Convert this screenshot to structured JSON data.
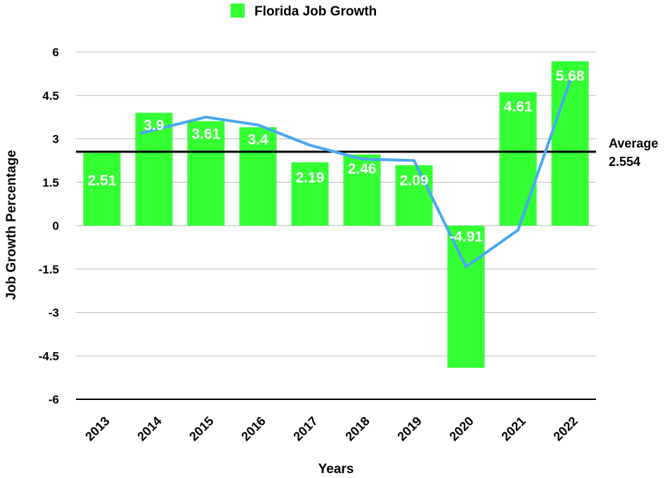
{
  "chart_data": {
    "type": "bar",
    "legend": [
      {
        "label": "Florida Job Growth",
        "color": "#33ff33"
      }
    ],
    "legend_placement": "top-center",
    "categories": [
      "2013",
      "2014",
      "2015",
      "2016",
      "2017",
      "2018",
      "2019",
      "2020",
      "2021",
      "2022"
    ],
    "series": [
      {
        "name": "Florida Job Growth",
        "values": [
          2.51,
          3.9,
          3.61,
          3.4,
          2.19,
          2.46,
          2.09,
          -4.91,
          4.61,
          5.68
        ],
        "color": "#33ff33"
      }
    ],
    "data_labels": [
      "2.51",
      "3.9",
      "3.61",
      "3.4",
      "2.19",
      "2.46",
      "2.09",
      "-4.91",
      "4.61",
      "5.68"
    ],
    "trend_line": {
      "color": "#4aa8f0",
      "values": [
        null,
        3.2,
        3.75,
        3.48,
        2.78,
        2.3,
        2.25,
        -1.42,
        -0.15,
        5.0
      ]
    },
    "average_line": {
      "value": 2.554,
      "label_line1": "Average",
      "label_line2": "2.554",
      "color": "#000000"
    },
    "xlabel": "Years",
    "ylabel": "Job Growth Percentage",
    "ylim": [
      -6,
      6
    ],
    "yticks": [
      6,
      4.5,
      3,
      1.5,
      0,
      -1.5,
      -3,
      -4.5,
      -6
    ],
    "ytick_labels": [
      "6",
      "4.5",
      "3",
      "1.5",
      "0",
      "-1.5",
      "-3",
      "-4.5",
      "-6"
    ],
    "grid": true
  }
}
